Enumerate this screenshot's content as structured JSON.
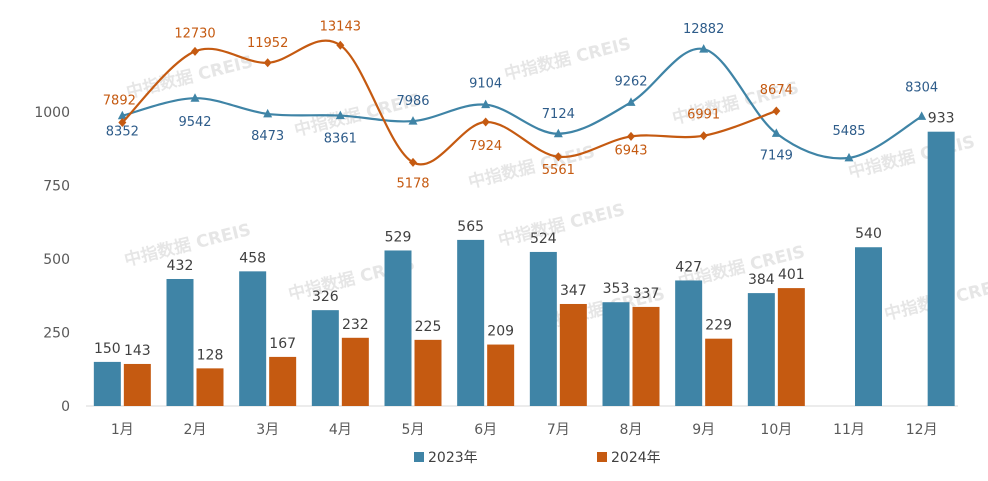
{
  "chart_data": {
    "type": "bar",
    "categories": [
      "1月",
      "2月",
      "3月",
      "4月",
      "5月",
      "6月",
      "7月",
      "8月",
      "9月",
      "10月",
      "11月",
      "12月"
    ],
    "yticks": [
      0,
      250,
      500,
      750,
      1000
    ],
    "ylim": [
      0,
      1000
    ],
    "series": [
      {
        "name": "2023年",
        "color": "#3f84a6",
        "values": [
          150,
          432,
          458,
          326,
          529,
          565,
          524,
          353,
          427,
          384,
          540,
          933
        ]
      },
      {
        "name": "2024年",
        "color": "#c55a11",
        "values": [
          143,
          128,
          167,
          232,
          225,
          209,
          347,
          337,
          229,
          401,
          null,
          null
        ]
      }
    ],
    "lines": [
      {
        "color": "#3f84a6",
        "marker": "triangle",
        "values": [
          8352,
          9542,
          8473,
          8361,
          7986,
          9104,
          7124,
          9262,
          12882,
          7149,
          5485,
          8304
        ]
      },
      {
        "color": "#c55a11",
        "marker": "diamond",
        "values": [
          7892,
          12730,
          11952,
          13143,
          5178,
          7924,
          5561,
          6943,
          6991,
          8674,
          null,
          null
        ]
      }
    ],
    "legend_position": "bottom",
    "watermark": "中指数据 CREIS"
  }
}
